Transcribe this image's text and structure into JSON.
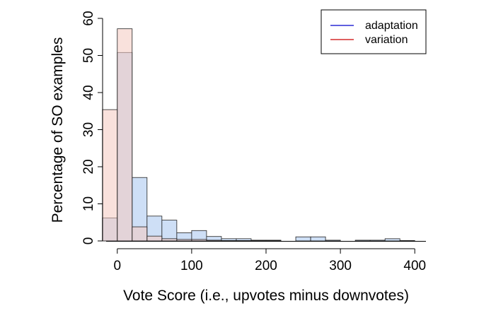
{
  "chart_data": {
    "type": "histogram",
    "xlabel": "Vote Score (i.e., upvotes minus downvotes)",
    "ylabel": "Percentage of SO examples",
    "xlim": [
      -15,
      415
    ],
    "ylim": [
      0,
      60
    ],
    "x_ticks": [
      0,
      100,
      200,
      300,
      400
    ],
    "y_ticks": [
      0,
      10,
      20,
      30,
      40,
      50,
      60
    ],
    "bin_edges": [
      -20,
      0,
      20,
      40,
      60,
      80,
      100,
      120,
      140,
      160,
      180,
      200,
      220,
      240,
      260,
      280,
      300,
      320,
      340,
      360,
      380,
      400
    ],
    "series": [
      {
        "name": "adaptation",
        "color": "#0000cc",
        "fill": "#c6d9f4",
        "values": [
          6.2,
          50.8,
          17.1,
          6.7,
          5.6,
          2.2,
          2.8,
          1.2,
          0.6,
          0.6,
          0.2,
          0.2,
          0,
          1.1,
          1.1,
          0.2,
          0,
          0.2,
          0.2,
          0.6,
          0.1
        ]
      },
      {
        "name": "variation",
        "color": "#cc0000",
        "fill": "#f4c8c0",
        "values": [
          35.4,
          57.2,
          3.8,
          1.3,
          0.6,
          0.4,
          0.4,
          0.2,
          0.1,
          0.1,
          0.1,
          0.1,
          0,
          0,
          0,
          0,
          0,
          0,
          0,
          0,
          0
        ]
      }
    ],
    "legend_position": "top-right"
  }
}
